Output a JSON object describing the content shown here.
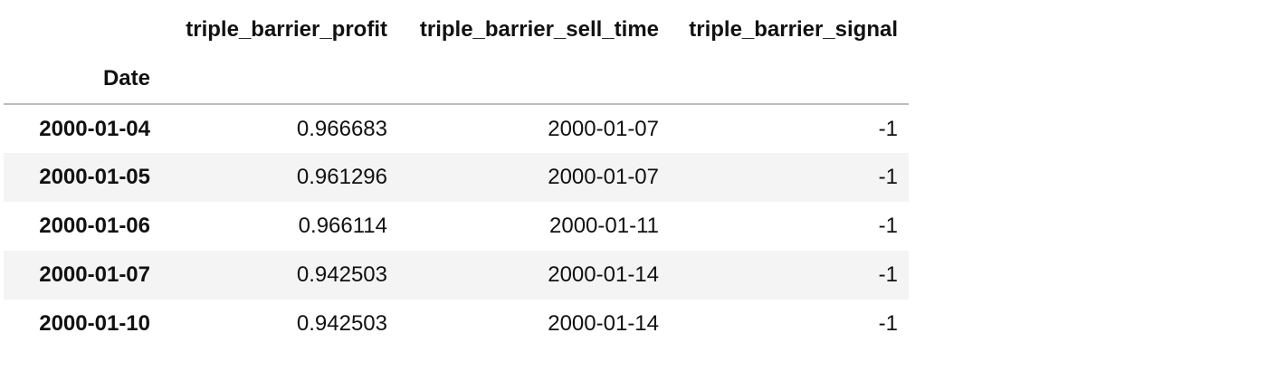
{
  "table": {
    "index_name": "Date",
    "columns": [
      "triple_barrier_profit",
      "triple_barrier_sell_time",
      "triple_barrier_signal"
    ],
    "rows": [
      {
        "index": "2000-01-04",
        "values": [
          "0.966683",
          "2000-01-07",
          "-1"
        ]
      },
      {
        "index": "2000-01-05",
        "values": [
          "0.961296",
          "2000-01-07",
          "-1"
        ]
      },
      {
        "index": "2000-01-06",
        "values": [
          "0.966114",
          "2000-01-11",
          "-1"
        ]
      },
      {
        "index": "2000-01-07",
        "values": [
          "0.942503",
          "2000-01-14",
          "-1"
        ]
      },
      {
        "index": "2000-01-10",
        "values": [
          "0.942503",
          "2000-01-14",
          "-1"
        ]
      }
    ]
  }
}
